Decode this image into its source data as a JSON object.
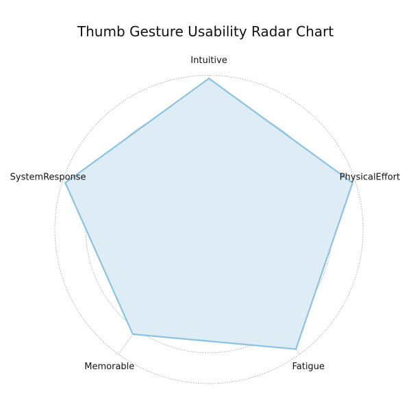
{
  "chart_data": {
    "type": "radar",
    "title": "Thumb Gesture Usability Radar Chart",
    "categories": [
      "Intuitive",
      "PhysicalEffort",
      "Fatigue",
      "Memorable",
      "SystemResponse"
    ],
    "series": [
      {
        "values": [
          4.9,
          4.9,
          4.8,
          4.2,
          4.9
        ]
      }
    ],
    "rlim": [
      0,
      5
    ],
    "rticks": [
      1,
      2,
      3,
      4,
      5
    ],
    "grid": true,
    "colors": {
      "line": "#8ac3e2",
      "fill": "#ddecf5",
      "grid": "#a0a0a0"
    }
  }
}
